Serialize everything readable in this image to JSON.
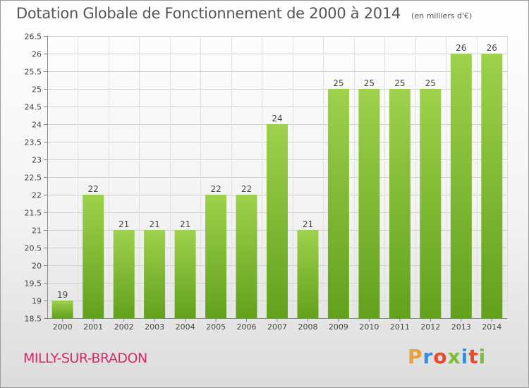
{
  "header": {
    "title": "Dotation Globale de Fonctionnement de 2000 à 2014",
    "subtitle": "(en milliers d'€)"
  },
  "footer": {
    "commune": "MILLY-SUR-BRADON",
    "logo_text": "Proxiti",
    "logo_colors": [
      "#e5a13a",
      "#3b8fd8",
      "#e24b2b",
      "#7cbc3a",
      "#3b8fd8",
      "#e24b2b",
      "#7cbc3a"
    ]
  },
  "chart_data": {
    "type": "bar",
    "title": "Dotation Globale de Fonctionnement de 2000 à 2014",
    "subtitle": "(en milliers d'€)",
    "categories": [
      "2000",
      "2001",
      "2002",
      "2003",
      "2004",
      "2005",
      "2006",
      "2007",
      "2008",
      "2009",
      "2010",
      "2011",
      "2012",
      "2013",
      "2014"
    ],
    "values": [
      19,
      22,
      21,
      21,
      21,
      22,
      22,
      24,
      21,
      25,
      25,
      25,
      25,
      26,
      26
    ],
    "data_labels": [
      "19",
      "22",
      "21",
      "21",
      "21",
      "22",
      "22",
      "24",
      "21",
      "25",
      "25",
      "25",
      "25",
      "26",
      "26"
    ],
    "ylim": [
      18.5,
      26.5
    ],
    "yticks": [
      18.5,
      19,
      19.5,
      20,
      20.5,
      21,
      21.5,
      22,
      22.5,
      23,
      23.5,
      24,
      24.5,
      25,
      25.5,
      26,
      26.5
    ],
    "ytick_labels": [
      "18.5",
      "19",
      "19.5",
      "20",
      "20.5",
      "21",
      "21.5",
      "22",
      "22.5",
      "23",
      "23.5",
      "24",
      "24.5",
      "25",
      "25.5",
      "26",
      "26.5"
    ],
    "grid": true,
    "bar_color_top": "#9ed14c",
    "bar_color_bottom": "#62a11c"
  }
}
